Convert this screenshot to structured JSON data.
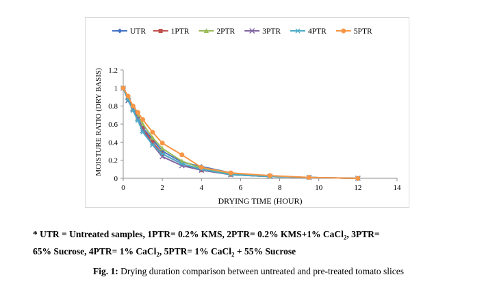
{
  "chart_data": {
    "type": "line",
    "xlabel": "DRYING TIME (HOUR)",
    "ylabel": "MOISTURE RATIO (DRY BASIS)",
    "xlim": [
      0,
      14
    ],
    "ylim": [
      0,
      1.2
    ],
    "xticks": [
      0,
      2,
      4,
      6,
      8,
      10,
      12,
      14
    ],
    "yticks": [
      0,
      0.2,
      0.4,
      0.6,
      0.8,
      1,
      1.2
    ],
    "grid": false,
    "legend_position": "top",
    "series": [
      {
        "name": "UTR",
        "color": "#4472C4",
        "marker": "diamond",
        "points": [
          [
            0,
            1.0
          ],
          [
            0.25,
            0.87
          ],
          [
            0.5,
            0.78
          ],
          [
            0.75,
            0.67
          ],
          [
            1,
            0.56
          ],
          [
            1.5,
            0.43
          ],
          [
            2,
            0.3
          ],
          [
            3,
            0.18
          ],
          [
            4,
            0.13
          ],
          [
            5.5,
            0.06
          ],
          [
            7.5,
            0.02
          ],
          [
            9.5,
            0.01
          ],
          [
            12,
            0.0
          ]
        ]
      },
      {
        "name": "1PTR",
        "color": "#C0504D",
        "marker": "square",
        "points": [
          [
            0,
            1.0
          ],
          [
            0.25,
            0.89
          ],
          [
            0.5,
            0.78
          ],
          [
            0.75,
            0.66
          ],
          [
            1,
            0.55
          ],
          [
            1.5,
            0.4
          ],
          [
            2,
            0.27
          ],
          [
            3,
            0.16
          ],
          [
            4,
            0.09
          ],
          [
            5.5,
            0.04
          ],
          [
            7.5,
            0.02
          ],
          [
            9.5,
            0.01
          ],
          [
            12,
            0.0
          ]
        ]
      },
      {
        "name": "2PTR",
        "color": "#9BBB59",
        "marker": "triangle",
        "points": [
          [
            0,
            1.0
          ],
          [
            0.25,
            0.9
          ],
          [
            0.5,
            0.8
          ],
          [
            0.75,
            0.7
          ],
          [
            1,
            0.6
          ],
          [
            1.5,
            0.45
          ],
          [
            2,
            0.33
          ],
          [
            3,
            0.19
          ],
          [
            4,
            0.11
          ],
          [
            5.5,
            0.05
          ],
          [
            7.5,
            0.02
          ],
          [
            9.5,
            0.01
          ],
          [
            12,
            0.0
          ]
        ]
      },
      {
        "name": "3PTR",
        "color": "#8064A2",
        "marker": "x",
        "points": [
          [
            0,
            1.0
          ],
          [
            0.25,
            0.86
          ],
          [
            0.5,
            0.76
          ],
          [
            0.75,
            0.66
          ],
          [
            1,
            0.53
          ],
          [
            1.5,
            0.37
          ],
          [
            2,
            0.24
          ],
          [
            3,
            0.14
          ],
          [
            4,
            0.09
          ],
          [
            5.5,
            0.04
          ],
          [
            7.5,
            0.02
          ],
          [
            9.5,
            0.01
          ],
          [
            12,
            0.0
          ]
        ]
      },
      {
        "name": "4PTR",
        "color": "#4BACC6",
        "marker": "star",
        "points": [
          [
            0,
            1.0
          ],
          [
            0.25,
            0.87
          ],
          [
            0.5,
            0.75
          ],
          [
            0.75,
            0.64
          ],
          [
            1,
            0.51
          ],
          [
            1.5,
            0.37
          ],
          [
            2,
            0.27
          ],
          [
            3,
            0.16
          ],
          [
            4,
            0.1
          ],
          [
            5.5,
            0.04
          ],
          [
            7.5,
            0.02
          ],
          [
            9.5,
            0.01
          ],
          [
            12,
            0.0
          ]
        ]
      },
      {
        "name": "5PTR",
        "color": "#F79646",
        "marker": "circle",
        "points": [
          [
            0,
            1.0
          ],
          [
            0.25,
            0.91
          ],
          [
            0.5,
            0.8
          ],
          [
            0.75,
            0.73
          ],
          [
            1,
            0.65
          ],
          [
            1.5,
            0.51
          ],
          [
            2,
            0.39
          ],
          [
            3,
            0.26
          ],
          [
            4,
            0.12
          ],
          [
            5.5,
            0.06
          ],
          [
            7.5,
            0.03
          ],
          [
            9.5,
            0.01
          ],
          [
            12,
            0.0
          ]
        ]
      }
    ]
  },
  "note": {
    "line1": "* UTR = Untreated samples, 1PTR= 0.2% KMS, 2PTR= 0.2% KMS+1% CaCl",
    "sub1": "2",
    "line1b": ", 3PTR=",
    "line2a": "65% Sucrose, 4PTR= 1% CaCl",
    "sub2": "2",
    "line2b": ", 5PTR= 1% CaCl",
    "sub3": "2",
    "line2c": " + 55% Sucrose"
  },
  "caption": {
    "label": "Fig. 1:",
    "text": " Drying duration comparison between untreated and pre-treated tomato slices"
  }
}
